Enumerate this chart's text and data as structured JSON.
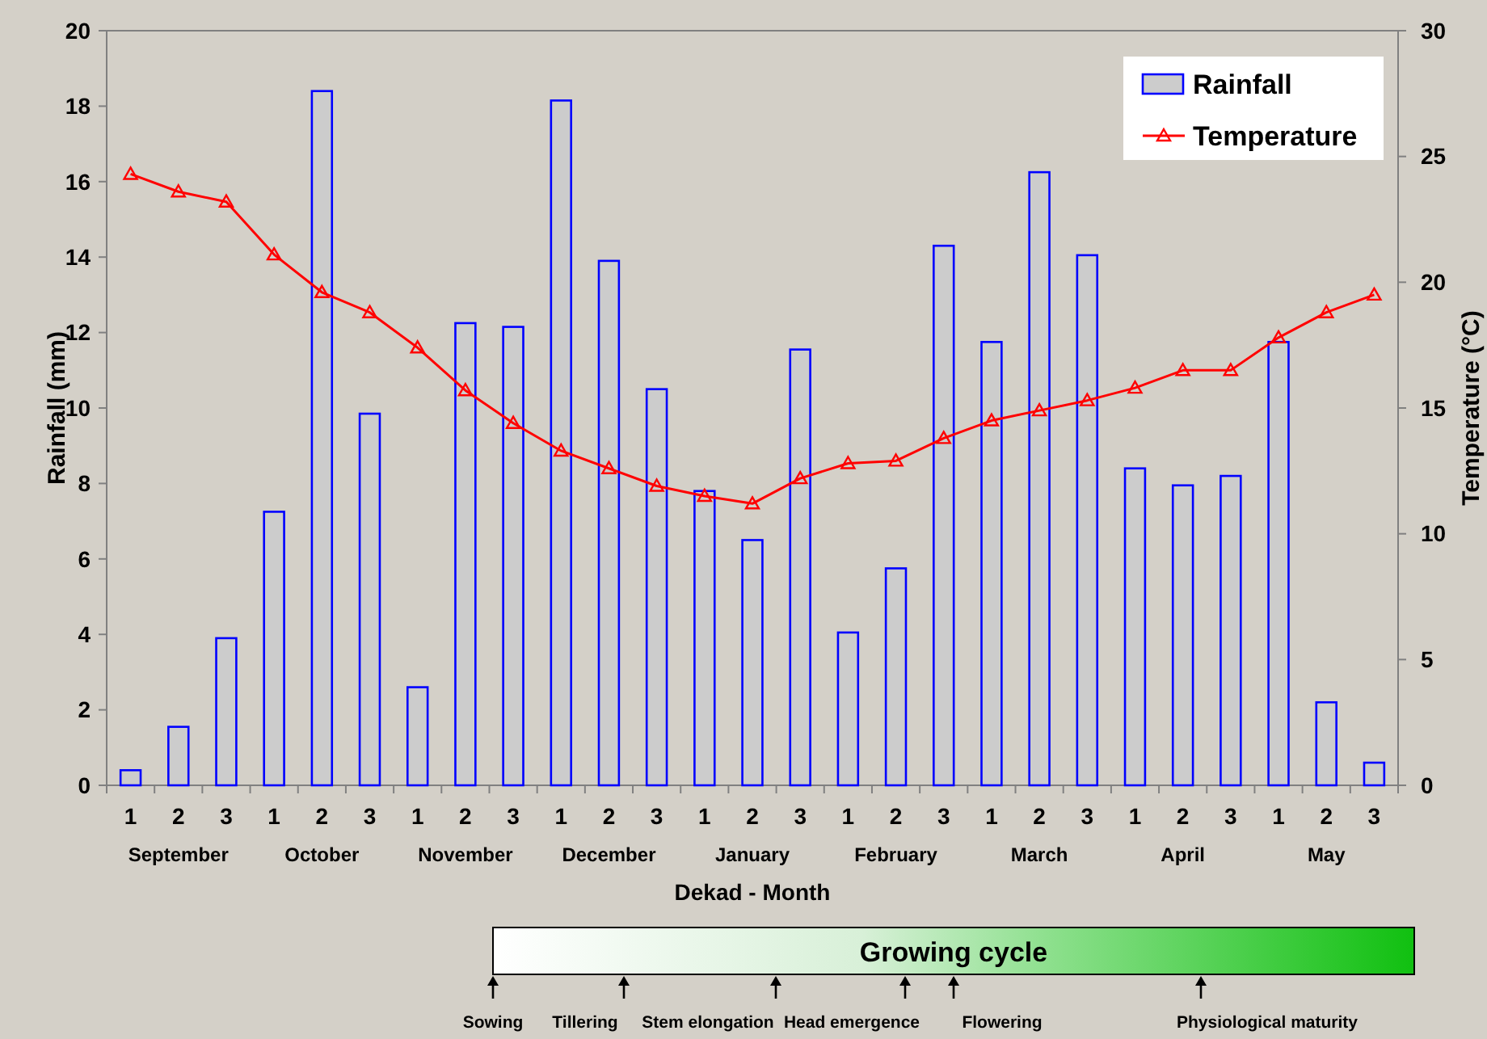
{
  "chart_data": {
    "type": "bar",
    "xlabel": "Dekad - Month",
    "ylabel": "Rainfall (mm)",
    "y2label": "Temperature (°C)",
    "categories": [
      "1",
      "2",
      "3",
      "1",
      "2",
      "3",
      "1",
      "2",
      "3",
      "1",
      "2",
      "3",
      "1",
      "2",
      "3",
      "1",
      "2",
      "3",
      "1",
      "2",
      "3",
      "1",
      "2",
      "3",
      "1",
      "2",
      "3"
    ],
    "series": [
      {
        "name": "Rainfall",
        "color": "#0000ff",
        "values": [
          0.4,
          1.55,
          3.9,
          7.25,
          18.4,
          9.85,
          2.6,
          12.25,
          12.15,
          18.15,
          13.9,
          10.5,
          7.8,
          6.5,
          11.55,
          4.05,
          5.75,
          14.3,
          11.75,
          16.25,
          14.05,
          8.4,
          7.95,
          8.2,
          11.75,
          2.2,
          0.6
        ]
      },
      {
        "name": "Temperature",
        "type": "line",
        "axis": "y2",
        "color": "#ff0000",
        "marker": "triangle",
        "values": [
          24.3,
          23.6,
          23.2,
          21.1,
          19.6,
          18.8,
          17.4,
          15.7,
          14.4,
          13.3,
          12.6,
          11.9,
          11.5,
          11.2,
          12.2,
          12.8,
          12.9,
          13.8,
          14.5,
          14.9,
          15.3,
          15.8,
          16.5,
          16.5,
          17.8,
          18.8,
          19.5
        ]
      }
    ],
    "ylim": [
      0,
      20
    ],
    "yticks": [
      0,
      2,
      4,
      6,
      8,
      10,
      12,
      14,
      16,
      18,
      20
    ],
    "y2lim": [
      0,
      30
    ],
    "y2ticks": [
      0,
      5,
      10,
      15,
      20,
      25,
      30
    ],
    "legend": "top right",
    "grid": false,
    "annotations": [
      "September",
      "October",
      "November",
      "December",
      "January",
      "February",
      "March",
      "April",
      "May",
      "Growing cycle",
      "Sowing",
      "Tillering",
      "Stem elongation",
      "Head emergence",
      "Flowering",
      "Physiological maturity"
    ]
  }
}
